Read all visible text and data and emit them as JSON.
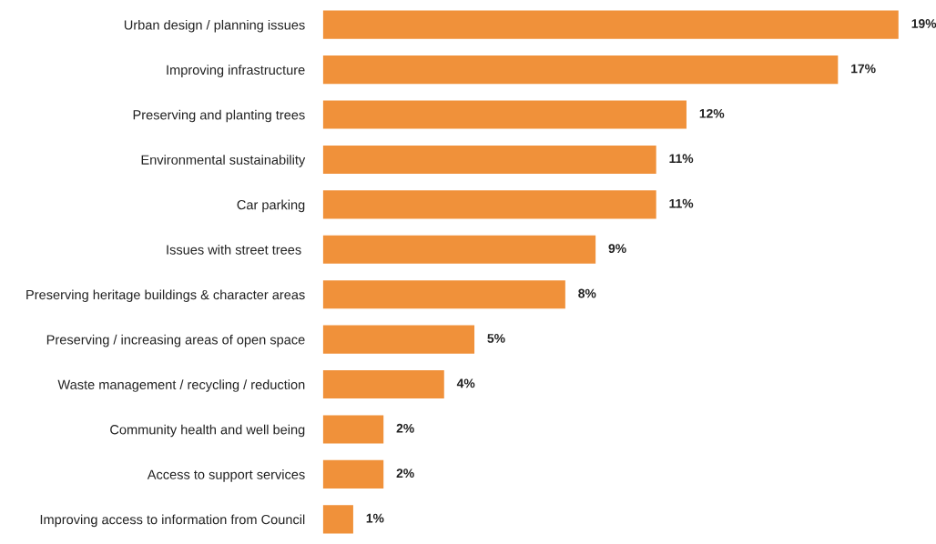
{
  "chart_data": {
    "type": "bar",
    "orientation": "horizontal",
    "categories": [
      "Urban design / planning issues",
      "Improving infrastructure",
      "Preserving and planting trees",
      "Environmental sustainability",
      "Car parking",
      "Issues with street trees ",
      "Preserving heritage buildings & character areas",
      "Preserving / increasing areas of open space",
      "Waste management / recycling / reduction",
      "Community health and well being",
      "Access to support services",
      "Improving access to information from Council"
    ],
    "values": [
      19,
      17,
      12,
      11,
      11,
      9,
      8,
      5,
      4,
      2,
      2,
      1
    ],
    "value_labels": [
      "19%",
      "17%",
      "12%",
      "11%",
      "11%",
      "9%",
      "8%",
      "5%",
      "4%",
      "2%",
      "2%",
      "1%"
    ],
    "color": "#f0913a",
    "grid": false,
    "legend": false
  }
}
